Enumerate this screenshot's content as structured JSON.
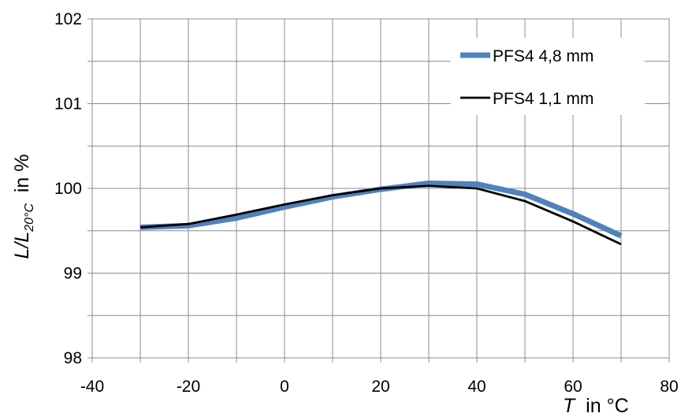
{
  "chart_data": {
    "type": "line",
    "xlabel": {
      "symbol": "T",
      "rest": "  in °C"
    },
    "ylabel": {
      "symbol": "L/L",
      "subscript": "20°C",
      "rest": "  in %"
    },
    "xlim": [
      -40,
      80
    ],
    "ylim": [
      98,
      102
    ],
    "xticks": [
      -40,
      -20,
      0,
      20,
      40,
      60,
      80
    ],
    "yticks": [
      98,
      99,
      100,
      101,
      102
    ],
    "x_minor_step": 10,
    "y_minor_step": 0.5,
    "grid": true,
    "legend_position": "top-right",
    "series": [
      {
        "name": "PFS4 4,8 mm",
        "color": "#4F81BD",
        "x": [
          -30,
          -20,
          -10,
          0,
          10,
          20,
          30,
          40,
          50,
          60,
          70
        ],
        "y": [
          99.54,
          99.56,
          99.65,
          99.78,
          99.9,
          99.99,
          100.06,
          100.05,
          99.93,
          99.7,
          99.44
        ]
      },
      {
        "name": "PFS4 1,1 mm",
        "color": "#000000",
        "x": [
          -30,
          -20,
          -10,
          0,
          10,
          20,
          30,
          40,
          50,
          60,
          70
        ],
        "y": [
          99.54,
          99.58,
          99.69,
          99.81,
          99.92,
          100.0,
          100.03,
          100.0,
          99.85,
          99.61,
          99.34
        ]
      }
    ]
  }
}
